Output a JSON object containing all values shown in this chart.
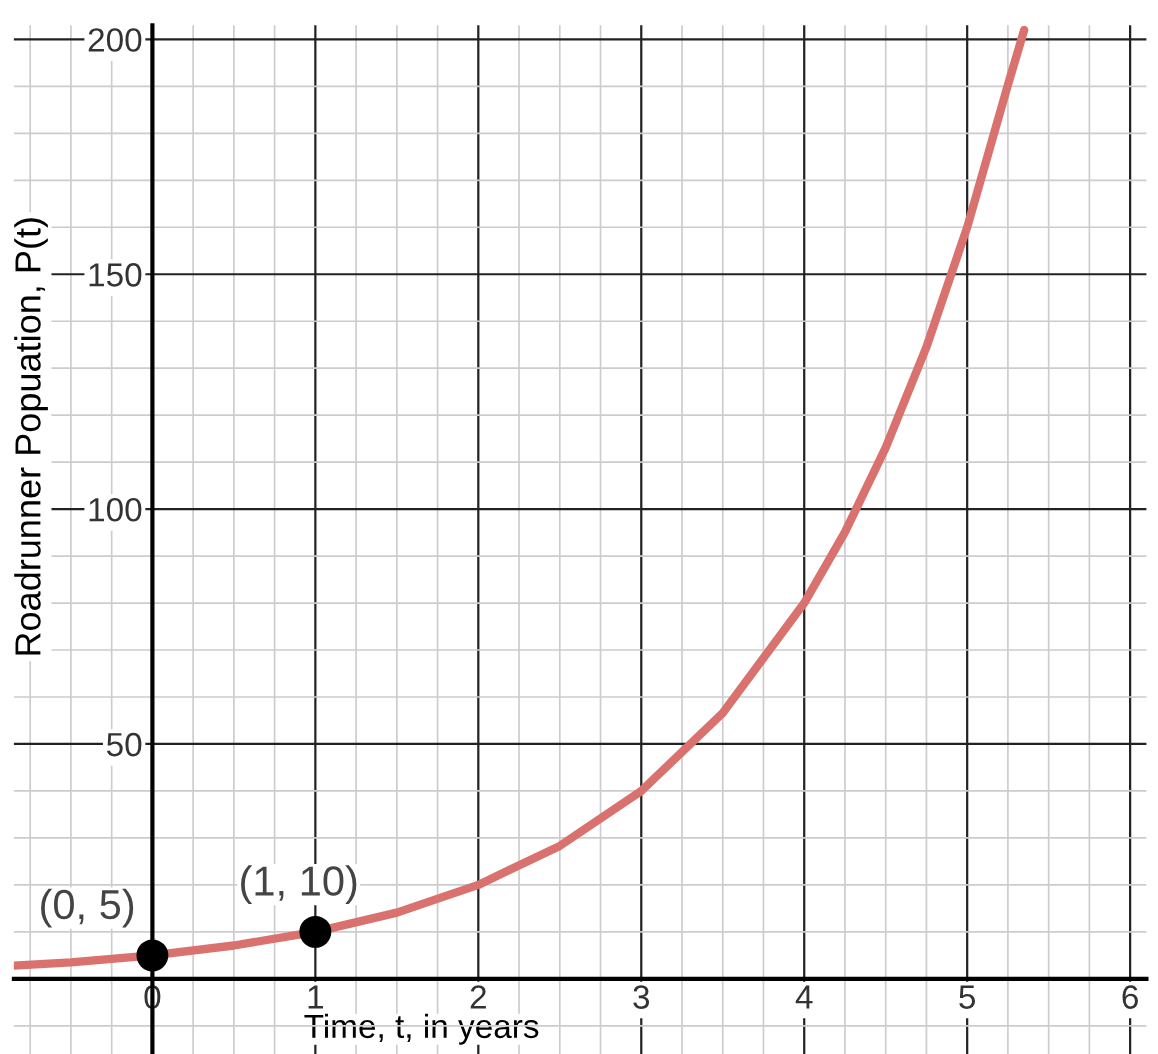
{
  "chart_data": {
    "type": "line",
    "xlabel": "Time, t, in years",
    "ylabel": "Roadrunner Popuation, P(t)",
    "xlim": [
      -0.85,
      6.1
    ],
    "ylim": [
      -16,
      203
    ],
    "xticks": [
      0,
      1,
      2,
      3,
      4,
      5,
      6
    ],
    "yticks": [
      50,
      100,
      150,
      200
    ],
    "grid": true,
    "legend": false,
    "series": [
      {
        "color": "#d9726f",
        "x": [
          -0.85,
          -0.5,
          0,
          0.5,
          1,
          1.5,
          2,
          2.5,
          3,
          3.5,
          4,
          4.25,
          4.5,
          4.75,
          5,
          5.25,
          5.35
        ],
        "values": [
          2.8,
          3.5,
          5,
          7.1,
          10,
          14.1,
          20,
          28.3,
          40,
          56.6,
          80,
          95.1,
          113.1,
          134.5,
          160,
          190.3,
          202
        ]
      },
      {
        "type": "scatter",
        "color": "#000000",
        "x": [
          0,
          1
        ],
        "values": [
          5,
          10
        ],
        "marker": "circle"
      }
    ],
    "annotations": [
      {
        "text": "(0, 5)",
        "x": 0,
        "y": 5
      },
      {
        "text": "(1, 10)",
        "x": 1,
        "y": 10
      }
    ]
  }
}
